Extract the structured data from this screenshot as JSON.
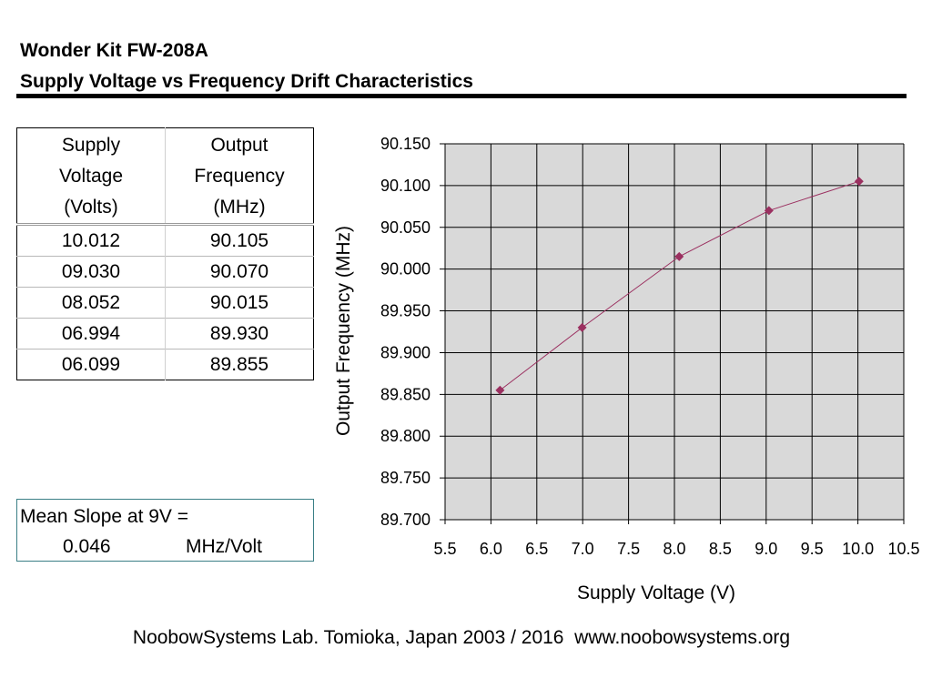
{
  "header": {
    "line1": "Wonder Kit FW-208A",
    "line2": "Supply Voltage vs Frequency Drift Characteristics"
  },
  "table": {
    "col1_header": [
      "Supply",
      "Voltage",
      "(Volts)"
    ],
    "col2_header": [
      "Output",
      "Frequency",
      "(MHz)"
    ],
    "rows": [
      [
        "10.012",
        "90.105"
      ],
      [
        "09.030",
        "90.070"
      ],
      [
        "08.052",
        "90.015"
      ],
      [
        "06.994",
        "89.930"
      ],
      [
        "06.099",
        "89.855"
      ]
    ]
  },
  "slope": {
    "label": "Mean Slope at 9V =",
    "value": "0.046",
    "unit": "MHz/Volt"
  },
  "footer": "NoobowSystems Lab. Tomioka, Japan 2003 / 2016  www.noobowsystems.org",
  "chart_data": {
    "type": "scatter",
    "title": "",
    "xlabel": "Supply Voltage (V)",
    "ylabel": "Output Frequency (MHz)",
    "xlim": [
      5.5,
      10.5
    ],
    "ylim": [
      89.7,
      90.15
    ],
    "x_ticks": [
      "5.5",
      "6.0",
      "6.5",
      "7.0",
      "7.5",
      "8.0",
      "8.5",
      "9.0",
      "9.5",
      "10.0",
      "10.5"
    ],
    "y_ticks": [
      "90.150",
      "90.100",
      "90.050",
      "90.000",
      "89.950",
      "89.900",
      "89.850",
      "89.800",
      "89.750",
      "89.700"
    ],
    "grid": true,
    "background_color": "#d9d9d9",
    "series_color": "#9b3060",
    "marker": "diamond",
    "connected": true,
    "series": [
      {
        "x": [
          6.099,
          6.994,
          8.052,
          9.03,
          10.012
        ],
        "y": [
          89.855,
          89.93,
          90.015,
          90.07,
          90.105
        ]
      }
    ]
  }
}
